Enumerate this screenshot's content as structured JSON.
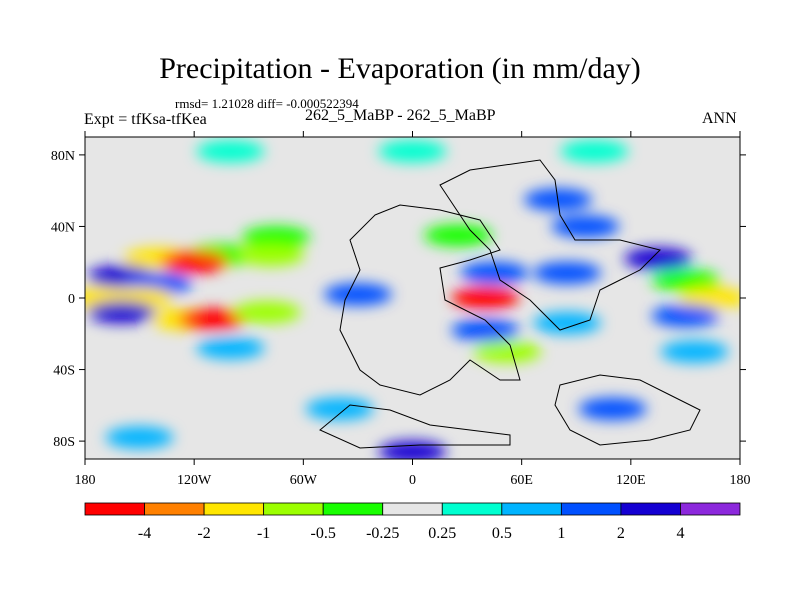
{
  "chart_data": {
    "type": "heatmap",
    "title": "Precipitation - Evaporation (in mm/day)",
    "stats_line": "rmsd= 1.21028 diff= -0.000522394",
    "rmsd": 1.21028,
    "diff": -0.000522394,
    "left_label": "Expt = tfKsa-tfKea",
    "center_label": "262_5_MaBP - 262_5_MaBP",
    "right_label": "ANN",
    "x_ticks": [
      {
        "label": "180",
        "lon": -180
      },
      {
        "label": "120W",
        "lon": -120
      },
      {
        "label": "60W",
        "lon": -60
      },
      {
        "label": "0",
        "lon": 0
      },
      {
        "label": "60E",
        "lon": 60
      },
      {
        "label": "120E",
        "lon": 120
      },
      {
        "label": "180",
        "lon": 180
      }
    ],
    "y_ticks": [
      {
        "label": "80N",
        "lat": 80
      },
      {
        "label": "40N",
        "lat": 40
      },
      {
        "label": "0",
        "lat": 0
      },
      {
        "label": "40S",
        "lat": -40
      },
      {
        "label": "80S",
        "lat": -80
      }
    ],
    "lon_range": [
      -180,
      180
    ],
    "lat_range": [
      -90,
      90
    ],
    "colorbar": {
      "colors": [
        "#ff0000",
        "#ff8000",
        "#ffe600",
        "#9cff00",
        "#18ff00",
        "#e6e6e6",
        "#00ffd0",
        "#00b4ff",
        "#0050ff",
        "#1400d2",
        "#8c28dc"
      ],
      "levels": [
        "-4",
        "-2",
        "-1",
        "-0.5",
        "-0.25",
        "0.25",
        "0.5",
        "1",
        "2",
        "4"
      ]
    },
    "background_color": "#e6e6e6",
    "field": [
      {
        "lon": 0,
        "lat": 82,
        "value": 0.3
      },
      {
        "lon": -100,
        "lat": 82,
        "value": 0.3
      },
      {
        "lon": 100,
        "lat": 82,
        "value": 0.3
      },
      {
        "lon": 80,
        "lat": 55,
        "value": 1.5
      },
      {
        "lon": 95,
        "lat": 40,
        "value": 1
      },
      {
        "lon": -75,
        "lat": 34,
        "value": -0.5
      },
      {
        "lon": -105,
        "lat": 24,
        "value": -0.5
      },
      {
        "lon": -140,
        "lat": 22,
        "value": -2
      },
      {
        "lon": -120,
        "lat": 20,
        "value": -5
      },
      {
        "lon": -78,
        "lat": 24,
        "value": -1
      },
      {
        "lon": -160,
        "lat": 12,
        "value": 3
      },
      {
        "lon": -140,
        "lat": 8,
        "value": 1.5
      },
      {
        "lon": -150,
        "lat": 0,
        "value": -2
      },
      {
        "lon": -175,
        "lat": 0,
        "value": -2
      },
      {
        "lon": -160,
        "lat": -8,
        "value": 3
      },
      {
        "lon": -125,
        "lat": -12,
        "value": -2
      },
      {
        "lon": -110,
        "lat": -12,
        "value": -5
      },
      {
        "lon": -80,
        "lat": -8,
        "value": -1
      },
      {
        "lon": -100,
        "lat": -28,
        "value": 0.5
      },
      {
        "lon": -30,
        "lat": 2,
        "value": 1.5
      },
      {
        "lon": 40,
        "lat": 0,
        "value": -5
      },
      {
        "lon": 45,
        "lat": 14,
        "value": 1.5
      },
      {
        "lon": 40,
        "lat": -18,
        "value": 1
      },
      {
        "lon": 25,
        "lat": 35,
        "value": -0.5
      },
      {
        "lon": 52,
        "lat": -30,
        "value": -1
      },
      {
        "lon": 85,
        "lat": 14,
        "value": 1.5
      },
      {
        "lon": 85,
        "lat": -14,
        "value": 0.5
      },
      {
        "lon": 135,
        "lat": 22,
        "value": 3
      },
      {
        "lon": 150,
        "lat": 10,
        "value": -0.5
      },
      {
        "lon": 165,
        "lat": 0,
        "value": -2
      },
      {
        "lon": 150,
        "lat": -10,
        "value": 1
      },
      {
        "lon": 155,
        "lat": -30,
        "value": 0.5
      },
      {
        "lon": 110,
        "lat": -62,
        "value": 1.5
      },
      {
        "lon": -40,
        "lat": -62,
        "value": 0.5
      },
      {
        "lon": -150,
        "lat": -78,
        "value": 0.5
      },
      {
        "lon": 0,
        "lat": -86,
        "value": 2
      }
    ]
  }
}
